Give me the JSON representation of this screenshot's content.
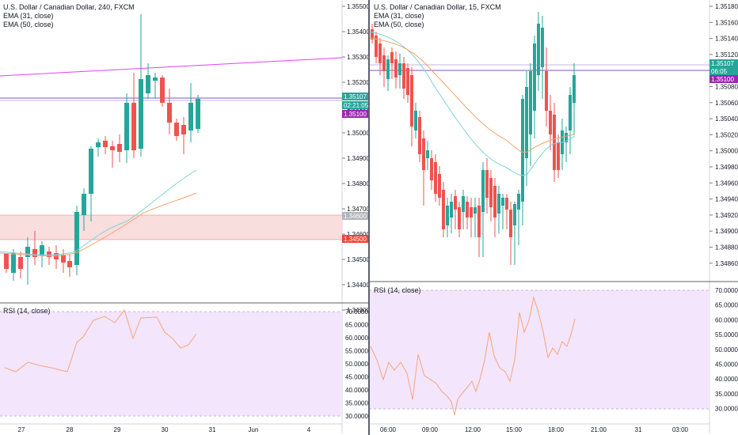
{
  "colors": {
    "up": "#26a69a",
    "down": "#ef5350",
    "ema31": "#7fd3d8",
    "ema50": "#f7a36b",
    "trendline": "#e040fb",
    "rsi_line": "#f4a57c",
    "rsi_band": "#f3e5fc",
    "zone": "#f9d9d9",
    "badge_purple": "#9c27b0",
    "badge_green": "#26a69a",
    "badge_grey": "#b2b5be",
    "badge_red": "#f44336"
  },
  "left_pane": {
    "legend": {
      "title": "U.S. Dollar / Canadian Dollar, 240, FXCM",
      "ema1": "EMA (31, close)",
      "ema2": "EMA (50, close)"
    },
    "price_ticks": [
      "1.35500",
      "1.35400",
      "1.35300",
      "1.35200",
      "1.35100",
      "1.35000",
      "1.34900",
      "1.34800",
      "1.34700",
      "1.34600",
      "1.34500",
      "1.34400",
      "1.34300"
    ],
    "badges": {
      "price": "1.35107",
      "countdown": "02:21:05",
      "line": "1.35100",
      "zone_top": "1.34600",
      "zone_bottom": "1.34500"
    },
    "rsi_label": "RSI (14, close)",
    "rsi_ticks": [
      "70.0000",
      "65.0000",
      "60.0000",
      "55.0000",
      "50.0000",
      "45.0000",
      "40.0000",
      "35.0000",
      "30.0000"
    ],
    "time_labels": [
      "27",
      "28",
      "29",
      "30",
      "31",
      "Jun",
      "4"
    ]
  },
  "right_pane": {
    "legend": {
      "title": "U.S. Dollar / Canadian Dollar, 15, FXCM",
      "ema1": "EMA (31, close)",
      "ema2": "EMA (50, close)"
    },
    "price_ticks": [
      "1.35180",
      "1.35160",
      "1.35140",
      "1.35120",
      "1.35100",
      "1.35080",
      "1.35060",
      "1.35040",
      "1.35020",
      "1.35000",
      "1.34980",
      "1.34960",
      "1.34940",
      "1.34920",
      "1.34900",
      "1.34880",
      "1.34860"
    ],
    "badges": {
      "price": "1.35107",
      "countdown": "06:05",
      "line": "1.35100"
    },
    "rsi_label": "RSI (14, close)",
    "rsi_ticks": [
      "70.0000",
      "65.0000",
      "60.0000",
      "55.0000",
      "50.0000",
      "45.0000",
      "40.0000",
      "35.0000",
      "30.0000"
    ],
    "time_labels": [
      "06:00",
      "09:00",
      "12:00",
      "15:00",
      "18:00",
      "21:00",
      "31",
      "03:00"
    ]
  }
}
